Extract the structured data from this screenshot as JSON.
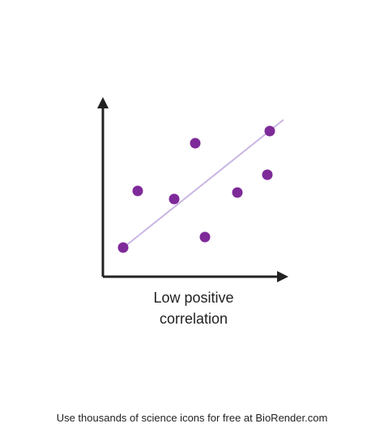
{
  "label": {
    "line1": "Low positive",
    "line2": "correlation"
  },
  "footer": "Use thousands of science icons for free at BioRender.com"
}
